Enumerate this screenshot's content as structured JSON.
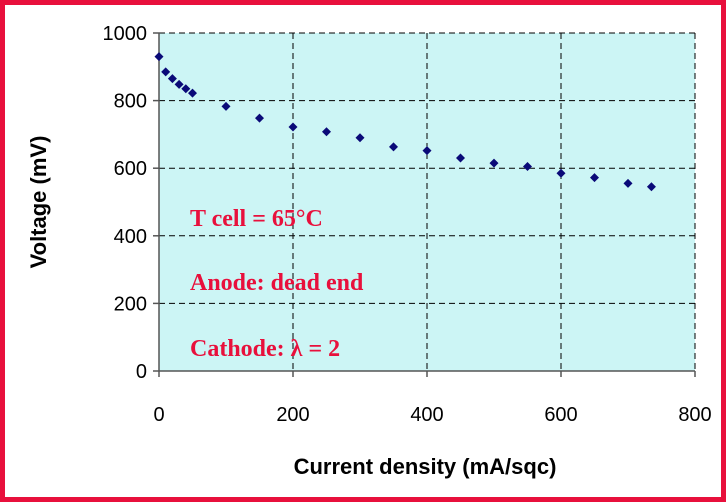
{
  "chart_data": {
    "type": "scatter",
    "title": "",
    "xlabel": "Current density (mA/sqc)",
    "ylabel": "Voltage (mV)",
    "xlim": [
      0,
      800
    ],
    "ylim": [
      0,
      1000
    ],
    "x_ticks": [
      "0",
      "200",
      "400",
      "600",
      "800"
    ],
    "y_ticks": [
      "0",
      "200",
      "400",
      "600",
      "800",
      "1000"
    ],
    "grid": "dashed",
    "legend": "none",
    "plot_background": "#ccf5f5",
    "border_color": "#e8103c",
    "marker_color": "#0a0a78",
    "annotation_color": "#e8103c",
    "annotations": [
      "T cell = 65°C",
      "Anode: dead end",
      "Cathode: λ = 2"
    ],
    "series": [
      {
        "x": [
          0,
          10,
          20,
          30,
          40,
          50,
          100,
          150,
          200,
          250,
          300,
          350,
          400,
          450,
          500,
          550,
          600,
          650,
          700,
          735
        ],
        "y": [
          930,
          885,
          865,
          848,
          835,
          822,
          783,
          748,
          722,
          708,
          690,
          663,
          652,
          630,
          615,
          605,
          585,
          572,
          555,
          545
        ]
      }
    ]
  }
}
